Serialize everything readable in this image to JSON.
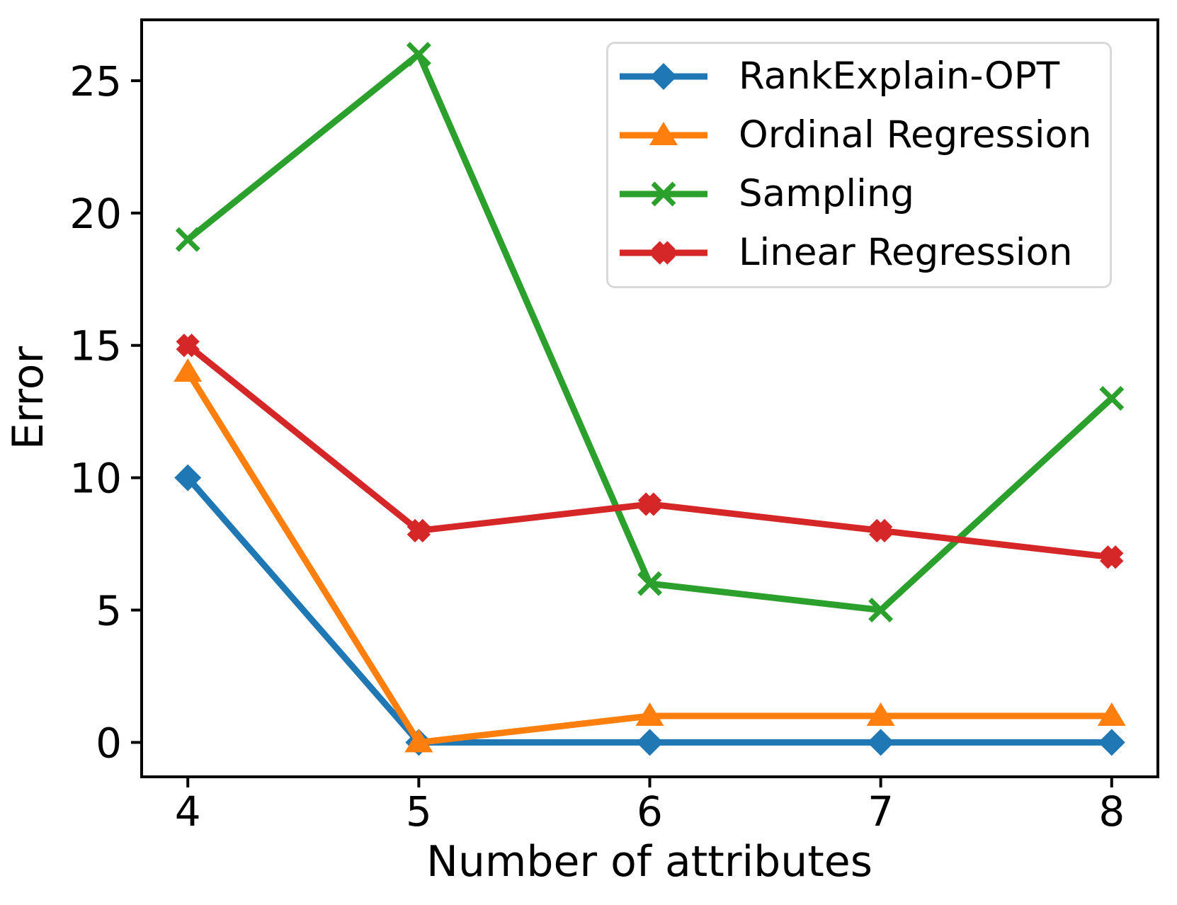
{
  "chart_data": {
    "type": "line",
    "title": "",
    "xlabel": "Number of attributes",
    "ylabel": "Error",
    "x": [
      4,
      5,
      6,
      7,
      8
    ],
    "x_ticks": [
      4,
      5,
      6,
      7,
      8
    ],
    "y_ticks": [
      0,
      5,
      10,
      15,
      20,
      25
    ],
    "xlim": [
      3.8,
      8.2
    ],
    "ylim": [
      -1.3,
      27.3
    ],
    "grid": false,
    "legend_position": "upper right",
    "axis_color": "#000000",
    "legend_border_color": "#d9d9d9",
    "series": [
      {
        "name": "RankExplain-OPT",
        "color": "#1f77b4",
        "marker": "diamond",
        "values": [
          10,
          0,
          0,
          0,
          0
        ]
      },
      {
        "name": "Ordinal Regression",
        "color": "#ff7f0e",
        "marker": "triangle-up",
        "values": [
          14,
          0,
          1,
          1,
          1
        ]
      },
      {
        "name": "Sampling",
        "color": "#2ca02c",
        "marker": "x-thin",
        "values": [
          19,
          26,
          6,
          5,
          13
        ]
      },
      {
        "name": "Linear Regression",
        "color": "#d62728",
        "marker": "x-bold",
        "values": [
          15,
          8,
          9,
          8,
          7
        ]
      }
    ]
  }
}
